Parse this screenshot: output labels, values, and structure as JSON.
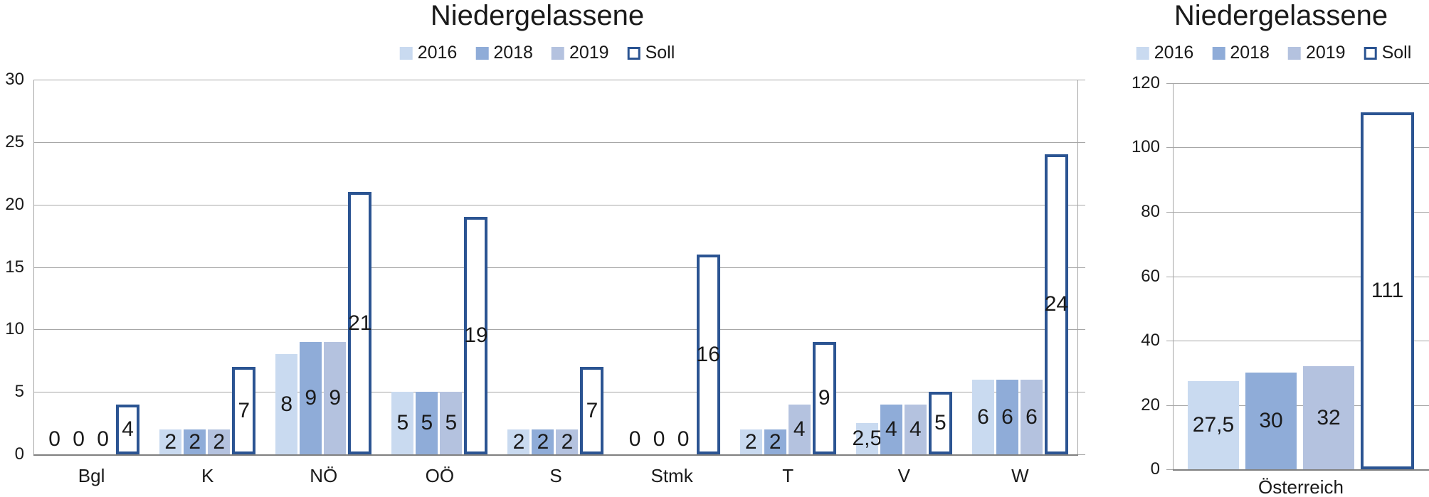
{
  "page": {
    "background": "#FFFFFF",
    "text_color": "#1A1A1A"
  },
  "colors": {
    "series_2016": "#C9DAF0",
    "series_2018": "#8FACD8",
    "series_2019": "#B4C2DF",
    "soll_outline": "#2B5492",
    "gridline": "#A6A6A6",
    "axis": "#808080"
  },
  "chart_data": [
    {
      "type": "bar",
      "title": "Niedergelassene",
      "legend_position": "top",
      "grid": true,
      "categories": [
        "Bgl",
        "K",
        "NÖ",
        "OÖ",
        "S",
        "Stmk",
        "T",
        "V",
        "W"
      ],
      "ylim": [
        0,
        30
      ],
      "ytick_step": 5,
      "ytick_labels": [
        "0",
        "5",
        "10",
        "15",
        "20",
        "25",
        "30"
      ],
      "series": [
        {
          "name": "2016",
          "style": "filled",
          "color": "#C9DAF0",
          "values": [
            0,
            2,
            8,
            5,
            2,
            0,
            2,
            2.5,
            6
          ],
          "labels": [
            "0",
            "2",
            "8",
            "5",
            "2",
            "0",
            "2",
            "2,5",
            "6"
          ]
        },
        {
          "name": "2018",
          "style": "filled",
          "color": "#8FACD8",
          "values": [
            0,
            2,
            9,
            5,
            2,
            0,
            2,
            4,
            6
          ],
          "labels": [
            "0",
            "2",
            "9",
            "5",
            "2",
            "0",
            "2",
            "4",
            "6"
          ]
        },
        {
          "name": "2019",
          "style": "filled",
          "color": "#B4C2DF",
          "values": [
            0,
            2,
            9,
            5,
            2,
            0,
            4,
            4,
            6
          ],
          "labels": [
            "0",
            "2",
            "9",
            "5",
            "2",
            "0",
            "4",
            "4",
            "6"
          ]
        },
        {
          "name": "Soll",
          "style": "outlined",
          "color": "#2B5492",
          "values": [
            4,
            7,
            21,
            19,
            7,
            16,
            9,
            5,
            24
          ],
          "labels": [
            "4",
            "7",
            "21",
            "19",
            "7",
            "16",
            "9",
            "5",
            "24"
          ]
        }
      ]
    },
    {
      "type": "bar",
      "title": "Niedergelassene",
      "legend_position": "top",
      "grid": true,
      "categories": [
        "Österreich"
      ],
      "ylim": [
        0,
        120
      ],
      "ytick_step": 20,
      "ytick_labels": [
        "0",
        "20",
        "40",
        "60",
        "80",
        "100",
        "120"
      ],
      "series": [
        {
          "name": "2016",
          "style": "filled",
          "color": "#C9DAF0",
          "values": [
            27.5
          ],
          "labels": [
            "27,5"
          ]
        },
        {
          "name": "2018",
          "style": "filled",
          "color": "#8FACD8",
          "values": [
            30
          ],
          "labels": [
            "30"
          ]
        },
        {
          "name": "2019",
          "style": "filled",
          "color": "#B4C2DF",
          "values": [
            32
          ],
          "labels": [
            "32"
          ]
        },
        {
          "name": "Soll",
          "style": "outlined",
          "color": "#2B5492",
          "values": [
            111
          ],
          "labels": [
            "111"
          ]
        }
      ]
    }
  ]
}
